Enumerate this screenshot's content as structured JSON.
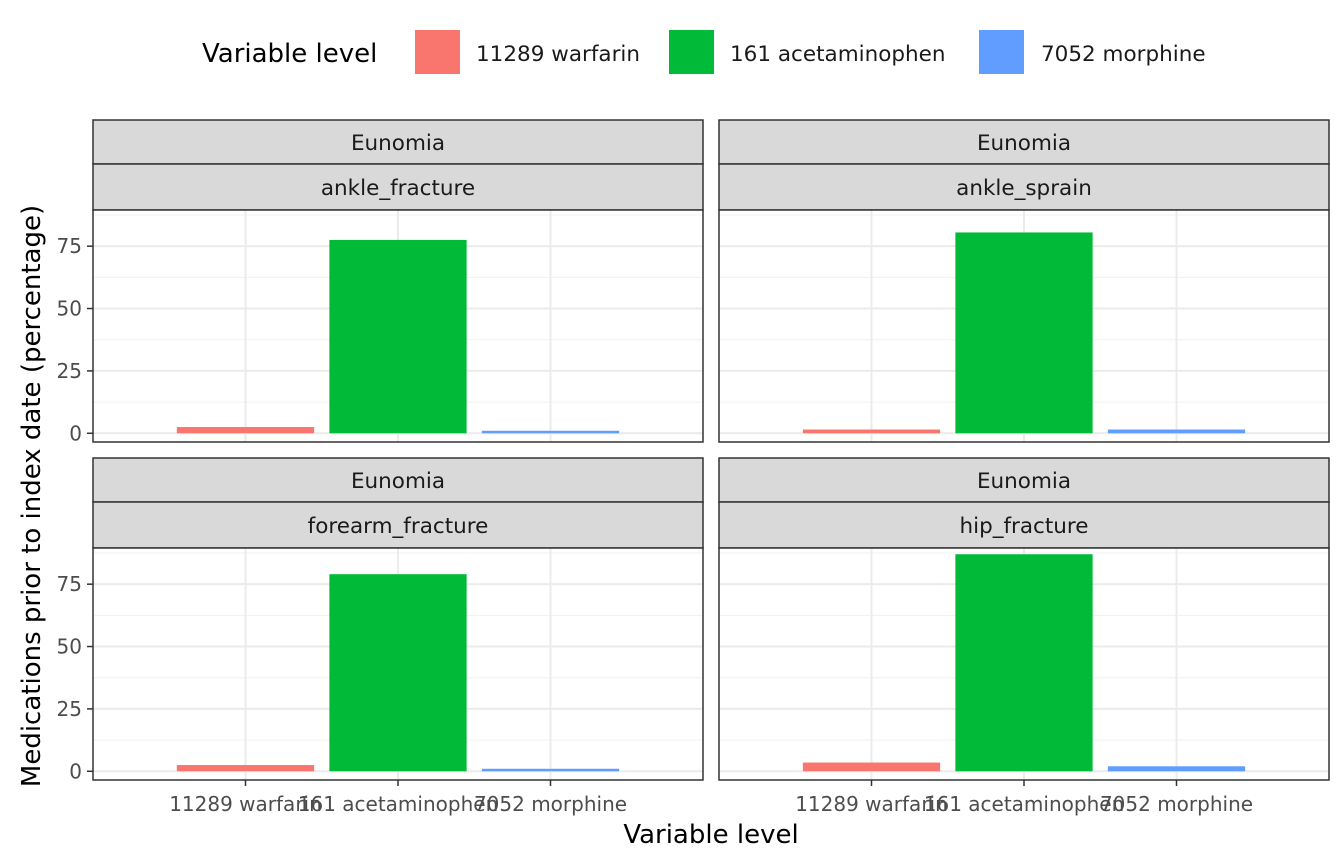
{
  "chart_data": {
    "type": "bar",
    "legend": {
      "title": "Variable level",
      "position": "top",
      "items": [
        {
          "label": "11289 warfarin",
          "color": "#F8766D"
        },
        {
          "label": "161 acetaminophen",
          "color": "#00BA38"
        },
        {
          "label": "7052 morphine",
          "color": "#619CFF"
        }
      ]
    },
    "xlabel": "Variable level",
    "ylabel": "Medications prior to index date (percentage)",
    "categories": [
      "11289 warfarin",
      "161 acetaminophen",
      "7052 morphine"
    ],
    "y_ticks": [
      0,
      25,
      50,
      75
    ],
    "ylim": [
      -3.5,
      89.5
    ],
    "grid": true,
    "panels": [
      {
        "strip_top": "Eunomia",
        "strip_bottom": "ankle_fracture",
        "values": [
          2.5,
          77.5,
          1.0
        ]
      },
      {
        "strip_top": "Eunomia",
        "strip_bottom": "ankle_sprain",
        "values": [
          1.5,
          80.5,
          1.5
        ]
      },
      {
        "strip_top": "Eunomia",
        "strip_bottom": "forearm_fracture",
        "values": [
          2.5,
          79.0,
          1.0
        ]
      },
      {
        "strip_top": "Eunomia",
        "strip_bottom": "hip_fracture",
        "values": [
          3.5,
          87.0,
          2.0
        ]
      }
    ]
  }
}
